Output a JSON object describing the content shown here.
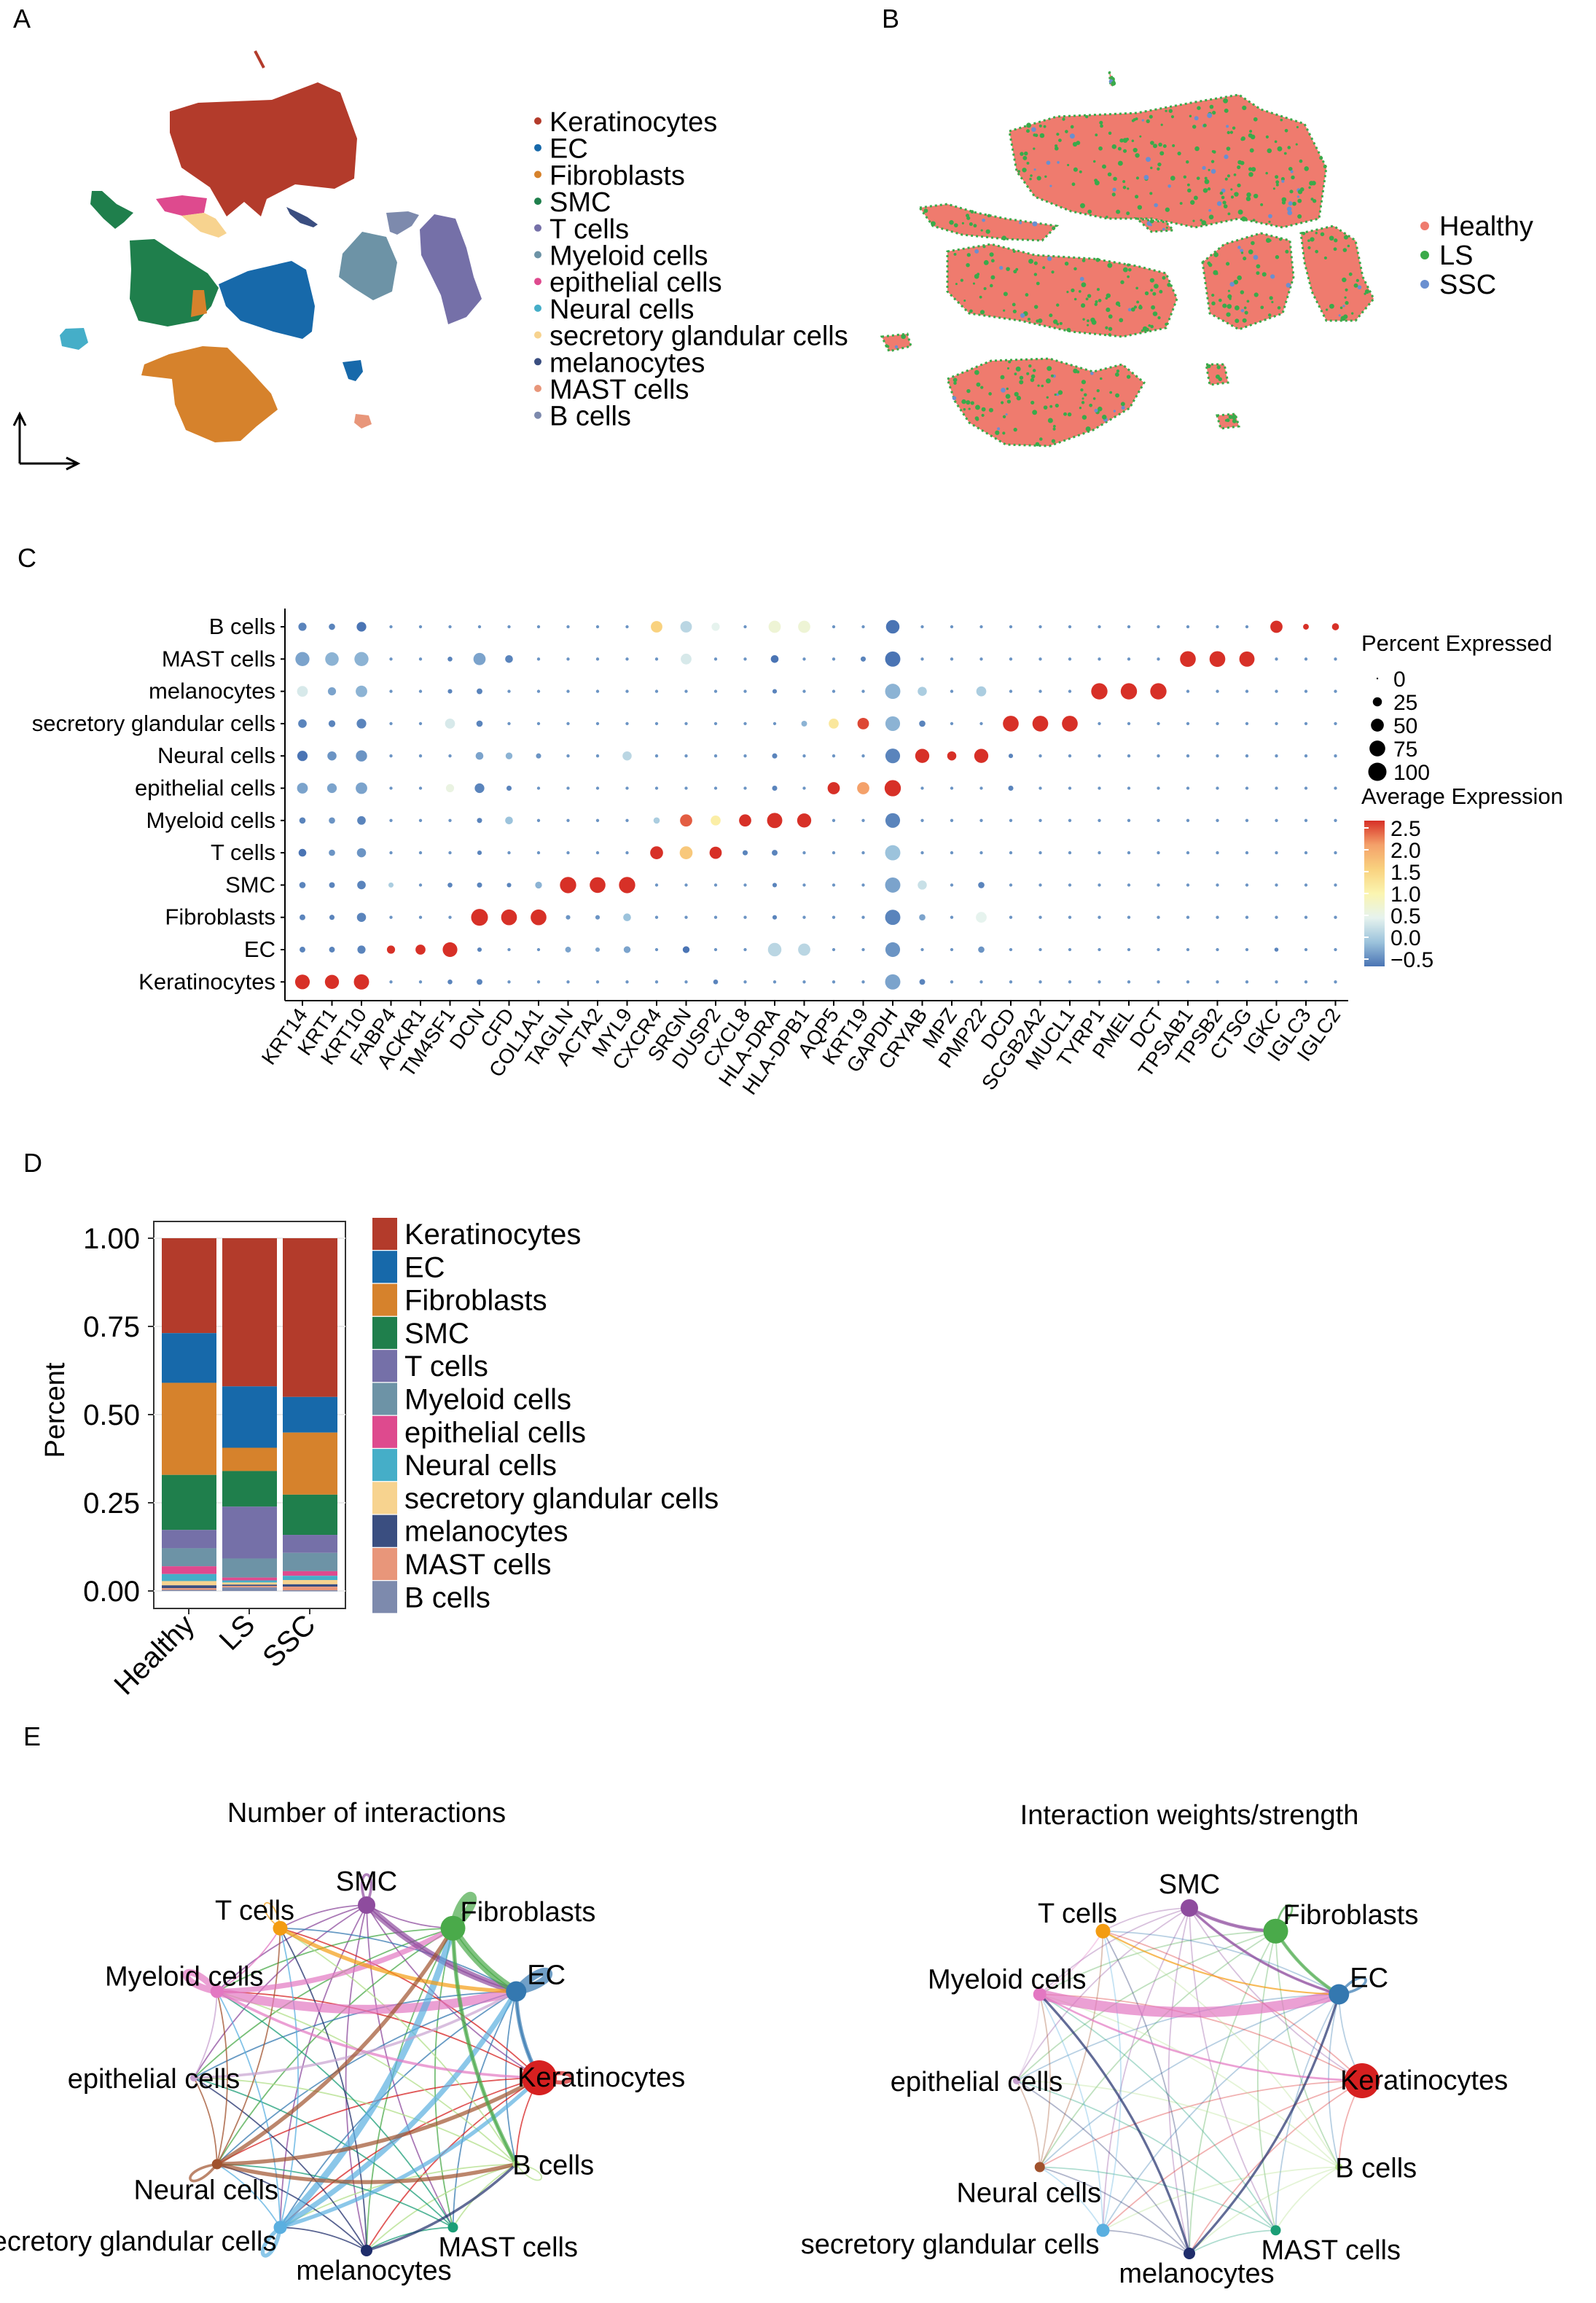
{
  "panel_labels": {
    "a": "A",
    "b": "B",
    "c": "C",
    "d": "D",
    "e": "E"
  },
  "cell_types": [
    {
      "name": "Keratinocytes",
      "color": "#b33b2b"
    },
    {
      "name": "EC",
      "color": "#1769aa"
    },
    {
      "name": "Fibroblasts",
      "color": "#d6822c"
    },
    {
      "name": "SMC",
      "color": "#1f7f4c"
    },
    {
      "name": "T cells",
      "color": "#7570a8"
    },
    {
      "name": "Myeloid cells",
      "color": "#6d93a6"
    },
    {
      "name": "epithelial cells",
      "color": "#de4a8e"
    },
    {
      "name": "Neural cells",
      "color": "#45aec8"
    },
    {
      "name": "secretory glandular cells",
      "color": "#f7d38f"
    },
    {
      "name": "melanocytes",
      "color": "#3a4e80"
    },
    {
      "name": "MAST cells",
      "color": "#e8967a"
    },
    {
      "name": "B cells",
      "color": "#7d8aad"
    }
  ],
  "conditions": [
    {
      "name": "Healthy",
      "color": "#ef7b6e"
    },
    {
      "name": "LS",
      "color": "#3aaa4a"
    },
    {
      "name": "SSC",
      "color": "#6a8fd0"
    }
  ],
  "chart_data": [
    {
      "type": "dot",
      "panel": "C",
      "rows": [
        "B cells",
        "MAST cells",
        "melanocytes",
        "secretory glandular cells",
        "Neural cells",
        "epithelial cells",
        "Myeloid cells",
        "T cells",
        "SMC",
        "Fibroblasts",
        "EC",
        "Keratinocytes"
      ],
      "genes": [
        "KRT14",
        "KRT1",
        "KRT10",
        "FABP4",
        "ACKR1",
        "TM4SF1",
        "DCN",
        "CFD",
        "COL1A1",
        "TAGLN",
        "ACTA2",
        "MYL9",
        "CXCR4",
        "SRGN",
        "DUSP2",
        "CXCL8",
        "HLA-DRA",
        "HLA-DPB1",
        "AQP5",
        "KRT19",
        "GAPDH",
        "CRYAB",
        "MPZ",
        "PMP22",
        "DCD",
        "SCGB2A2",
        "MUCL1",
        "TYRP1",
        "PMEL",
        "DCT",
        "TPSAB1",
        "TPSB2",
        "CTSG",
        "IGKC",
        "IGLC3",
        "IGLC2"
      ],
      "baseline": {
        "pct": 3,
        "exp": -0.3
      },
      "values_pct_exp": {
        "B cells": {
          "KRT14": [
            20,
            -0.4
          ],
          "KRT1": [
            12,
            -0.4
          ],
          "KRT10": [
            28,
            -0.5
          ],
          "CXCR4": [
            40,
            1.5
          ],
          "SRGN": [
            40,
            0.2
          ],
          "DUSP2": [
            20,
            0.5
          ],
          "HLA-DRA": [
            45,
            0.7
          ],
          "HLA-DPB1": [
            45,
            0.7
          ],
          "GAPDH": [
            55,
            -0.7
          ],
          "IGKC": [
            45,
            2.5
          ],
          "IGLC3": [
            10,
            2.5
          ],
          "IGLC2": [
            15,
            2.5
          ]
        },
        "MAST cells": {
          "KRT14": [
            60,
            -0.2
          ],
          "KRT1": [
            55,
            -0.1
          ],
          "KRT10": [
            60,
            -0.1
          ],
          "TM4SF1": [
            7,
            -0.4
          ],
          "DCN": [
            45,
            -0.2
          ],
          "CFD": [
            18,
            -0.4
          ],
          "SRGN": [
            35,
            0.4
          ],
          "HLA-DRA": [
            18,
            -0.5
          ],
          "KRT19": [
            8,
            -0.4
          ],
          "GAPDH": [
            70,
            -0.5
          ],
          "TPSAB1": [
            75,
            2.5
          ],
          "TPSB2": [
            75,
            2.5
          ],
          "CTSG": [
            70,
            2.5
          ]
        },
        "melanocytes": {
          "KRT14": [
            35,
            0.4
          ],
          "KRT1": [
            20,
            -0.2
          ],
          "KRT10": [
            40,
            -0.1
          ],
          "TM4SF1": [
            6,
            -0.4
          ],
          "DCN": [
            10,
            -0.4
          ],
          "HLA-DRA": [
            6,
            -0.4
          ],
          "GAPDH": [
            70,
            -0.1
          ],
          "CRYAB": [
            25,
            0.1
          ],
          "PMP22": [
            30,
            0.1
          ],
          "TYRP1": [
            80,
            2.5
          ],
          "PMEL": [
            80,
            2.5
          ],
          "DCT": [
            80,
            2.5
          ]
        },
        "secretory glandular cells": {
          "KRT14": [
            22,
            -0.4
          ],
          "KRT1": [
            14,
            -0.4
          ],
          "KRT10": [
            28,
            -0.4
          ],
          "TM4SF1": [
            30,
            0.4
          ],
          "DCN": [
            12,
            -0.4
          ],
          "HLA-DPB1": [
            10,
            -0.1
          ],
          "AQP5": [
            30,
            1.2
          ],
          "KRT19": [
            40,
            2.4
          ],
          "GAPDH": [
            65,
            -0.1
          ],
          "CRYAB": [
            12,
            -0.4
          ],
          "DCD": [
            75,
            2.5
          ],
          "SCGB2A2": [
            75,
            2.5
          ],
          "MUCL1": [
            75,
            2.5
          ]
        },
        "Neural cells": {
          "KRT14": [
            32,
            -0.5
          ],
          "KRT1": [
            25,
            -0.3
          ],
          "KRT10": [
            38,
            -0.3
          ],
          "DCN": [
            18,
            -0.2
          ],
          "CFD": [
            14,
            -0.1
          ],
          "COL1A1": [
            8,
            -0.3
          ],
          "MYL9": [
            25,
            0.2
          ],
          "HLA-DRA": [
            8,
            -0.4
          ],
          "GAPDH": [
            65,
            -0.4
          ],
          "CRYAB": [
            60,
            2.5
          ],
          "MPZ": [
            25,
            2.5
          ],
          "PMP22": [
            60,
            2.5
          ],
          "DCD": [
            6,
            -0.4
          ]
        },
        "epithelial cells": {
          "KRT14": [
            35,
            -0.2
          ],
          "KRT1": [
            28,
            -0.2
          ],
          "KRT10": [
            40,
            -0.2
          ],
          "TM4SF1": [
            20,
            0.6
          ],
          "DCN": [
            28,
            -0.4
          ],
          "CFD": [
            8,
            -0.4
          ],
          "HLA-DRA": [
            8,
            -0.4
          ],
          "AQP5": [
            45,
            2.5
          ],
          "KRT19": [
            45,
            2.0
          ],
          "GAPDH": [
            80,
            2.5
          ],
          "DCD": [
            8,
            -0.4
          ]
        },
        "Myeloid cells": {
          "KRT14": [
            12,
            -0.4
          ],
          "KRT1": [
            12,
            -0.3
          ],
          "KRT10": [
            22,
            -0.4
          ],
          "DCN": [
            8,
            -0.4
          ],
          "CFD": [
            18,
            0.0
          ],
          "CXCR4": [
            12,
            0.1
          ],
          "SRGN": [
            45,
            2.3
          ],
          "DUSP2": [
            30,
            1.1
          ],
          "CXCL8": [
            45,
            2.5
          ],
          "HLA-DRA": [
            70,
            2.5
          ],
          "HLA-DPB1": [
            60,
            2.5
          ],
          "GAPDH": [
            65,
            -0.4
          ]
        },
        "T cells": {
          "KRT14": [
            18,
            -0.5
          ],
          "KRT1": [
            12,
            -0.3
          ],
          "KRT10": [
            25,
            -0.3
          ],
          "DCN": [
            6,
            -0.4
          ],
          "CXCR4": [
            50,
            2.5
          ],
          "SRGN": [
            50,
            1.6
          ],
          "DUSP2": [
            45,
            2.5
          ],
          "CXCL8": [
            8,
            -0.4
          ],
          "HLA-DRA": [
            10,
            -0.4
          ],
          "GAPDH": [
            70,
            0.0
          ]
        },
        "SMC": {
          "KRT14": [
            12,
            -0.4
          ],
          "KRT1": [
            10,
            -0.4
          ],
          "KRT10": [
            22,
            -0.4
          ],
          "FABP4": [
            8,
            0.1
          ],
          "TM4SF1": [
            7,
            -0.4
          ],
          "DCN": [
            8,
            -0.4
          ],
          "CFD": [
            6,
            -0.4
          ],
          "COL1A1": [
            14,
            -0.1
          ],
          "TAGLN": [
            80,
            2.5
          ],
          "ACTA2": [
            75,
            2.5
          ],
          "MYL9": [
            80,
            2.5
          ],
          "HLA-DRA": [
            6,
            -0.4
          ],
          "GAPDH": [
            70,
            -0.2
          ],
          "CRYAB": [
            25,
            0.3
          ],
          "PMP22": [
            12,
            -0.4
          ]
        },
        "Fibroblasts": {
          "KRT14": [
            10,
            -0.4
          ],
          "KRT1": [
            8,
            -0.4
          ],
          "KRT10": [
            25,
            -0.4
          ],
          "DCN": [
            85,
            2.5
          ],
          "CFD": [
            75,
            2.5
          ],
          "COL1A1": [
            75,
            2.5
          ],
          "TAGLN": [
            6,
            -0.3
          ],
          "ACTA2": [
            6,
            -0.3
          ],
          "MYL9": [
            18,
            0.0
          ],
          "HLA-DRA": [
            6,
            -0.4
          ],
          "GAPDH": [
            70,
            -0.4
          ],
          "CRYAB": [
            12,
            -0.2
          ],
          "PMP22": [
            35,
            0.5
          ]
        },
        "EC": {
          "KRT14": [
            10,
            -0.4
          ],
          "KRT1": [
            10,
            -0.4
          ],
          "KRT10": [
            20,
            -0.4
          ],
          "FABP4": [
            20,
            2.5
          ],
          "ACKR1": [
            30,
            2.5
          ],
          "TM4SF1": [
            65,
            2.5
          ],
          "DCN": [
            6,
            -0.4
          ],
          "TAGLN": [
            10,
            -0.2
          ],
          "ACTA2": [
            6,
            -0.2
          ],
          "MYL9": [
            14,
            -0.2
          ],
          "SRGN": [
            14,
            -0.5
          ],
          "HLA-DRA": [
            55,
            0.2
          ],
          "HLA-DPB1": [
            45,
            0.2
          ],
          "GAPDH": [
            65,
            -0.3
          ],
          "PMP22": [
            12,
            -0.3
          ],
          "IGKC": [
            5,
            -0.4
          ]
        },
        "Keratinocytes": {
          "KRT14": [
            65,
            2.5
          ],
          "KRT1": [
            60,
            2.5
          ],
          "KRT10": [
            70,
            2.5
          ],
          "TM4SF1": [
            7,
            -0.4
          ],
          "DCN": [
            10,
            -0.4
          ],
          "DUSP2": [
            7,
            -0.4
          ],
          "GAPDH": [
            70,
            -0.2
          ],
          "CRYAB": [
            10,
            -0.4
          ]
        }
      },
      "size_legend": {
        "title": "Percent Expressed",
        "breaks": [
          "0",
          "25",
          "50",
          "75",
          "100"
        ]
      },
      "color_legend": {
        "title": "Average Expression",
        "breaks": [
          "2.5",
          "2.0",
          "1.5",
          "1.0",
          "0.5",
          "0.0",
          "−0.5"
        ],
        "range": [
          -0.5,
          2.5
        ],
        "color_scale": [
          "#4a74b4",
          "#9cc3dc",
          "#e6f3ee",
          "#fbf5b0",
          "#f9d27f",
          "#f4a16a",
          "#d73027"
        ]
      }
    },
    {
      "type": "bar",
      "stacked": true,
      "panel": "D",
      "categories": [
        "Healthy",
        "LS",
        "SSC"
      ],
      "ylabel": "Percent",
      "ylim": [
        0,
        1
      ],
      "yticks": [
        "0.00",
        "0.25",
        "0.50",
        "0.75",
        "1.00"
      ],
      "series": [
        {
          "name": "Keratinocytes",
          "values": [
            0.269,
            0.42,
            0.45
          ]
        },
        {
          "name": "EC",
          "values": [
            0.141,
            0.174,
            0.101
          ]
        },
        {
          "name": "Fibroblasts",
          "values": [
            0.261,
            0.066,
            0.176
          ]
        },
        {
          "name": "SMC",
          "values": [
            0.156,
            0.101,
            0.114
          ]
        },
        {
          "name": "T cells",
          "values": [
            0.052,
            0.147,
            0.051
          ]
        },
        {
          "name": "Myeloid cells",
          "values": [
            0.051,
            0.054,
            0.052
          ]
        },
        {
          "name": "epithelial cells",
          "values": [
            0.022,
            0.008,
            0.013
          ]
        },
        {
          "name": "Neural cells",
          "values": [
            0.02,
            0.006,
            0.012
          ]
        },
        {
          "name": "secretory glandular cells",
          "values": [
            0.012,
            0.006,
            0.012
          ]
        },
        {
          "name": "melanocytes",
          "values": [
            0.008,
            0.004,
            0.007
          ]
        },
        {
          "name": "MAST cells",
          "values": [
            0.005,
            0.004,
            0.01
          ]
        },
        {
          "name": "B cells",
          "values": [
            0.003,
            0.01,
            0.003
          ]
        }
      ]
    },
    {
      "type": "network",
      "panel": "E-left",
      "title": "Number of interactions",
      "nodes": [
        "SMC",
        "Fibroblasts",
        "EC",
        "Keratinocytes",
        "B cells",
        "MAST cells",
        "melanocytes",
        "secretory glandular cells",
        "Neural cells",
        "epithelial cells",
        "Myeloid cells",
        "T cells"
      ],
      "node_colors": [
        "#8e4c9e",
        "#4aaa4a",
        "#3478b0",
        "#d62020",
        "#b2df8a",
        "#1b9e77",
        "#1f2d6b",
        "#5aafe0",
        "#a0522d",
        "#c8a2d0",
        "#e377c2",
        "#f39c12"
      ],
      "node_size": [
        12,
        17,
        14,
        24,
        5,
        7,
        8,
        9,
        7,
        5,
        9,
        10
      ],
      "edges": [
        [
          "Myeloid cells",
          "EC",
          7
        ],
        [
          "Myeloid cells",
          "Fibroblasts",
          4
        ],
        [
          "SMC",
          "EC",
          5
        ],
        [
          "Fibroblasts",
          "EC",
          6
        ],
        [
          "Fibroblasts",
          "Fibroblasts",
          6
        ],
        [
          "EC",
          "EC",
          6
        ],
        [
          "Myeloid cells",
          "Myeloid cells",
          5
        ],
        [
          "secretory glandular cells",
          "Fibroblasts",
          5
        ],
        [
          "secretory glandular cells",
          "EC",
          4
        ],
        [
          "secretory glandular cells",
          "Keratinocytes",
          3
        ],
        [
          "Neural cells",
          "Keratinocytes",
          3
        ],
        [
          "Neural cells",
          "B cells",
          3
        ],
        [
          "T cells",
          "EC",
          3
        ],
        [
          "Keratinocytes",
          "Keratinocytes",
          3
        ],
        [
          "Neural cells",
          "Neural cells",
          2
        ],
        [
          "secretory glandular cells",
          "secretory glandular cells",
          3
        ],
        [
          "SMC",
          "SMC",
          2
        ],
        [
          "T cells",
          "T cells",
          1
        ],
        [
          "B cells",
          "B cells",
          1
        ],
        [
          "melanocytes",
          "B cells",
          2
        ],
        [
          "Myeloid cells",
          "Keratinocytes",
          2
        ],
        [
          "epithelial cells",
          "EC",
          2
        ],
        [
          "Fibroblasts",
          "B cells",
          3
        ],
        [
          "EC",
          "Keratinocytes",
          3
        ],
        [
          "Neural cells",
          "Fibroblasts",
          3
        ]
      ]
    },
    {
      "type": "network",
      "panel": "E-right",
      "title": "Interaction weights/strength",
      "nodes": [
        "SMC",
        "Fibroblasts",
        "EC",
        "Keratinocytes",
        "B cells",
        "MAST cells",
        "melanocytes",
        "secretory glandular cells",
        "Neural cells",
        "epithelial cells",
        "Myeloid cells",
        "T cells"
      ],
      "node_colors": [
        "#8e4c9e",
        "#4aaa4a",
        "#3478b0",
        "#d62020",
        "#b2df8a",
        "#1b9e77",
        "#1f2d6b",
        "#5aafe0",
        "#a0522d",
        "#c8a2d0",
        "#e377c2",
        "#f39c12"
      ],
      "node_size": [
        12,
        17,
        14,
        24,
        5,
        7,
        8,
        9,
        7,
        5,
        9,
        10
      ],
      "edges": [
        [
          "Myeloid cells",
          "EC",
          8
        ],
        [
          "Fibroblasts",
          "EC",
          2.5
        ],
        [
          "SMC",
          "Fibroblasts",
          2.5
        ],
        [
          "SMC",
          "EC",
          2
        ],
        [
          "Myeloid cells",
          "Keratinocytes",
          1.5
        ],
        [
          "melanocytes",
          "Myeloid cells",
          1.8
        ],
        [
          "melanocytes",
          "EC",
          1.8
        ],
        [
          "EC",
          "EC",
          2
        ],
        [
          "Fibroblasts",
          "Fibroblasts",
          1.5
        ],
        [
          "T cells",
          "EC",
          1.2
        ]
      ]
    }
  ]
}
